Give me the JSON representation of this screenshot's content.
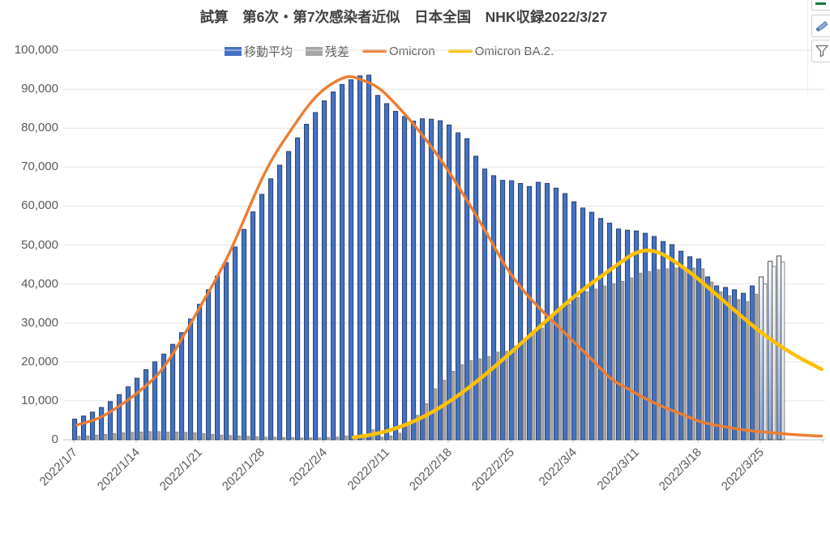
{
  "title": "試算　第6次・第7次感染者近似　日本全国　NHK収録2022/3/27",
  "legend": [
    {
      "name": "moving-average",
      "label": "移動平均",
      "type": "bar",
      "color": "#4472C4"
    },
    {
      "name": "residual",
      "label": "残差",
      "type": "bar",
      "color": "#A6A6A6"
    },
    {
      "name": "omicron",
      "label": "Omicron",
      "type": "line",
      "color": "#ED7D31"
    },
    {
      "name": "omicron-ba2",
      "label": "Omicron BA.2.",
      "type": "line",
      "color": "#FFC000"
    }
  ],
  "corner_buttons": [
    "chart-elements",
    "chart-styles",
    "chart-filters"
  ],
  "colors": {
    "bar_blue": "#4472C4",
    "bar_blue_border": "#1F3864",
    "bar_gray": "#A6A6A6",
    "bar_gray_border": "#6E6E6E",
    "line_omicron": "#ED7D31",
    "line_ba2": "#FFC000",
    "gridline": "#E2E2E2",
    "axis": "#C6C6C6",
    "label": "#595959",
    "title": "#404040"
  },
  "chart_data": {
    "type": "combo",
    "title": "試算　第6次・第7次感染者近似　日本全国　NHK収録2022/3/27",
    "xlabel": "",
    "ylabel": "",
    "grid": "horizontal",
    "legend_position": "top",
    "y_axis": {
      "min": 0,
      "max": 100000,
      "step": 10000,
      "tick_labels": [
        "0",
        "10,000",
        "20,000",
        "30,000",
        "40,000",
        "50,000",
        "60,000",
        "70,000",
        "80,000",
        "90,000",
        "100,000"
      ]
    },
    "x_axis": {
      "rotation": -45,
      "tick_labels": [
        "2022/1/7",
        "2022/1/14",
        "2022/1/21",
        "2022/1/28",
        "2022/2/4",
        "2022/2/11",
        "2022/2/18",
        "2022/2/25",
        "2022/3/4",
        "2022/3/11",
        "2022/3/18",
        "2022/3/25"
      ]
    },
    "categories": [
      "2022/1/7",
      "2022/1/8",
      "2022/1/9",
      "2022/1/10",
      "2022/1/11",
      "2022/1/12",
      "2022/1/13",
      "2022/1/14",
      "2022/1/15",
      "2022/1/16",
      "2022/1/17",
      "2022/1/18",
      "2022/1/19",
      "2022/1/20",
      "2022/1/21",
      "2022/1/22",
      "2022/1/23",
      "2022/1/24",
      "2022/1/25",
      "2022/1/26",
      "2022/1/27",
      "2022/1/28",
      "2022/1/29",
      "2022/1/30",
      "2022/1/31",
      "2022/2/1",
      "2022/2/2",
      "2022/2/3",
      "2022/2/4",
      "2022/2/5",
      "2022/2/6",
      "2022/2/7",
      "2022/2/8",
      "2022/2/9",
      "2022/2/10",
      "2022/2/11",
      "2022/2/12",
      "2022/2/13",
      "2022/2/14",
      "2022/2/15",
      "2022/2/16",
      "2022/2/17",
      "2022/2/18",
      "2022/2/19",
      "2022/2/20",
      "2022/2/21",
      "2022/2/22",
      "2022/2/23",
      "2022/2/24",
      "2022/2/25",
      "2022/2/26",
      "2022/2/27",
      "2022/2/28",
      "2022/3/1",
      "2022/3/2",
      "2022/3/3",
      "2022/3/4",
      "2022/3/5",
      "2022/3/6",
      "2022/3/7",
      "2022/3/8",
      "2022/3/9",
      "2022/3/10",
      "2022/3/11",
      "2022/3/12",
      "2022/3/13",
      "2022/3/14",
      "2022/3/15",
      "2022/3/16",
      "2022/3/17",
      "2022/3/18",
      "2022/3/19",
      "2022/3/20",
      "2022/3/21",
      "2022/3/22",
      "2022/3/23",
      "2022/3/24",
      "2022/3/25",
      "2022/3/26",
      "2022/3/27"
    ],
    "forecast_from_index": 77,
    "series": [
      {
        "name": "移動平均",
        "type": "bar",
        "color": "#4472C4",
        "values": [
          5300,
          6100,
          7100,
          8300,
          9800,
          11600,
          13600,
          15800,
          18000,
          20000,
          22000,
          24500,
          27500,
          31000,
          34800,
          38500,
          42000,
          45500,
          49500,
          54000,
          58500,
          63000,
          67000,
          70500,
          74000,
          77500,
          81000,
          84000,
          87000,
          89300,
          91200,
          92400,
          93400,
          93600,
          88400,
          86300,
          84300,
          83000,
          81800,
          82400,
          82300,
          81900,
          80800,
          78800,
          77300,
          72800,
          69500,
          67800,
          66600,
          66500,
          65800,
          65000,
          66100,
          65800,
          64600,
          63200,
          61100,
          59500,
          58400,
          56800,
          55600,
          54100,
          53800,
          53600,
          53000,
          52200,
          50900,
          50100,
          48400,
          47000,
          46400,
          41800,
          39500,
          39100,
          38500,
          37600,
          39500,
          41800,
          45800,
          47200
        ]
      },
      {
        "name": "残差",
        "type": "bar",
        "color": "#A6A6A6",
        "values": [
          900,
          1000,
          1200,
          1400,
          1600,
          1800,
          1900,
          2000,
          2100,
          2100,
          2000,
          2000,
          1900,
          1800,
          1600,
          1400,
          1200,
          1100,
          1000,
          900,
          800,
          700,
          700,
          600,
          600,
          500,
          500,
          500,
          600,
          700,
          1000,
          800,
          500,
          2600,
          700,
          1000,
          1700,
          3800,
          6300,
          9300,
          13100,
          15300,
          17600,
          19300,
          20300,
          20800,
          21400,
          22500,
          22700,
          24100,
          26000,
          27700,
          28700,
          31200,
          33900,
          34900,
          36600,
          38000,
          38700,
          39500,
          40100,
          40700,
          41600,
          42800,
          43200,
          43700,
          43900,
          44100,
          44300,
          44100,
          43900,
          40500,
          38000,
          37000,
          36000,
          35500,
          37400,
          40000,
          44500,
          45600
        ]
      },
      {
        "name": "Omicron",
        "type": "line",
        "color": "#ED7D31",
        "points": [
          [
            0,
            3800
          ],
          [
            3,
            6200
          ],
          [
            7,
            12500
          ],
          [
            10,
            19500
          ],
          [
            14,
            34900
          ],
          [
            17,
            47500
          ],
          [
            21,
            68200
          ],
          [
            24,
            79500
          ],
          [
            27,
            88500
          ],
          [
            30,
            93000
          ],
          [
            32,
            92300
          ],
          [
            34,
            90000
          ],
          [
            36,
            85500
          ],
          [
            38,
            80300
          ],
          [
            40,
            74400
          ],
          [
            42,
            67800
          ],
          [
            44,
            60500
          ],
          [
            46,
            52800
          ],
          [
            48,
            44800
          ],
          [
            50,
            38500
          ],
          [
            52,
            33500
          ],
          [
            54,
            29000
          ],
          [
            56,
            24500
          ],
          [
            58,
            20000
          ],
          [
            60,
            15500
          ],
          [
            62,
            12800
          ],
          [
            64,
            10300
          ],
          [
            66,
            8200
          ],
          [
            68,
            6400
          ],
          [
            70,
            4600
          ],
          [
            72,
            3600
          ],
          [
            74,
            2800
          ],
          [
            76,
            2200
          ],
          [
            78,
            1800
          ],
          [
            80,
            1400
          ],
          [
            82,
            1100
          ],
          [
            83.5,
            950
          ]
        ]
      },
      {
        "name": "Omicron BA.2.",
        "type": "line",
        "color": "#FFC000",
        "points": [
          [
            31,
            600
          ],
          [
            33,
            1300
          ],
          [
            35,
            2400
          ],
          [
            37,
            4000
          ],
          [
            39,
            6100
          ],
          [
            41,
            8700
          ],
          [
            43,
            11800
          ],
          [
            45,
            15300
          ],
          [
            47,
            19100
          ],
          [
            49,
            23100
          ],
          [
            51,
            27200
          ],
          [
            53,
            31300
          ],
          [
            55,
            35300
          ],
          [
            57,
            39000
          ],
          [
            59,
            42300
          ],
          [
            61,
            45600
          ],
          [
            62.5,
            47800
          ],
          [
            64,
            48600
          ],
          [
            65.5,
            47800
          ],
          [
            67,
            45800
          ],
          [
            69,
            42500
          ],
          [
            71,
            38700
          ],
          [
            73,
            34700
          ],
          [
            75,
            30800
          ],
          [
            77,
            27100
          ],
          [
            79,
            23900
          ],
          [
            81,
            21100
          ],
          [
            83,
            18700
          ],
          [
            83.5,
            18100
          ]
        ]
      }
    ]
  }
}
